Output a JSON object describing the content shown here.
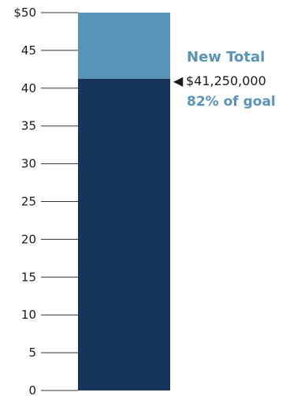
{
  "chart_data": {
    "type": "bar",
    "title": "",
    "xlabel": "",
    "ylabel": "",
    "ylim": [
      0,
      50
    ],
    "yticks": [
      0,
      5,
      10,
      15,
      20,
      25,
      30,
      35,
      40,
      45,
      50
    ],
    "ytick_labels": [
      "0",
      "5",
      "10",
      "15",
      "20",
      "25",
      "30",
      "35",
      "40",
      "45",
      "$50"
    ],
    "bar": {
      "raised": 41.25,
      "goal": 50,
      "raised_color": "#17345a",
      "remaining_color": "#5a93b8"
    },
    "annotation": {
      "title": "New Total",
      "value_text": "$41,250,000",
      "percent_text": "82% of goal",
      "marker": "◀",
      "accent_color": "#5a93b8"
    }
  }
}
